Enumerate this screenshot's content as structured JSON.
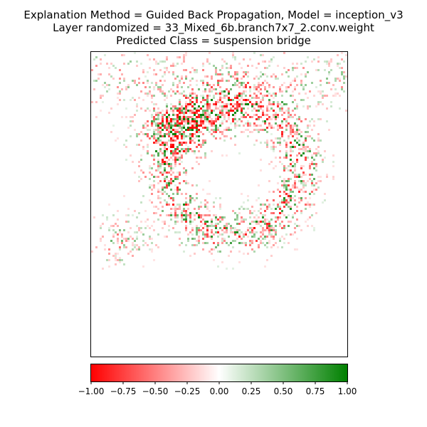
{
  "chart_data": {
    "type": "heatmap",
    "title_lines": [
      "Explanation Method = Guided Back Propagation, Model = inception_v3",
      "Layer randomized = 33_Mixed_6b.branch7x7_2.conv.weight",
      "Predicted Class = suspension bridge"
    ],
    "xlabel": "",
    "ylabel": "",
    "axes_ticks_visible": false,
    "grid": false,
    "colorbar": {
      "orientation": "horizontal",
      "placement": "bottom",
      "range": [
        -1.0,
        1.0
      ],
      "ticks": [
        -1.0,
        -0.75,
        -0.5,
        -0.25,
        0.0,
        0.25,
        0.5,
        0.75,
        1.0
      ],
      "tick_labels": [
        "−1.00",
        "−0.75",
        "−0.50",
        "−0.25",
        "0.00",
        "0.25",
        "0.50",
        "0.75",
        "1.00"
      ],
      "colors": {
        "min": "#ff0000",
        "mid": "#ffffff",
        "max": "#008000"
      }
    }
  }
}
